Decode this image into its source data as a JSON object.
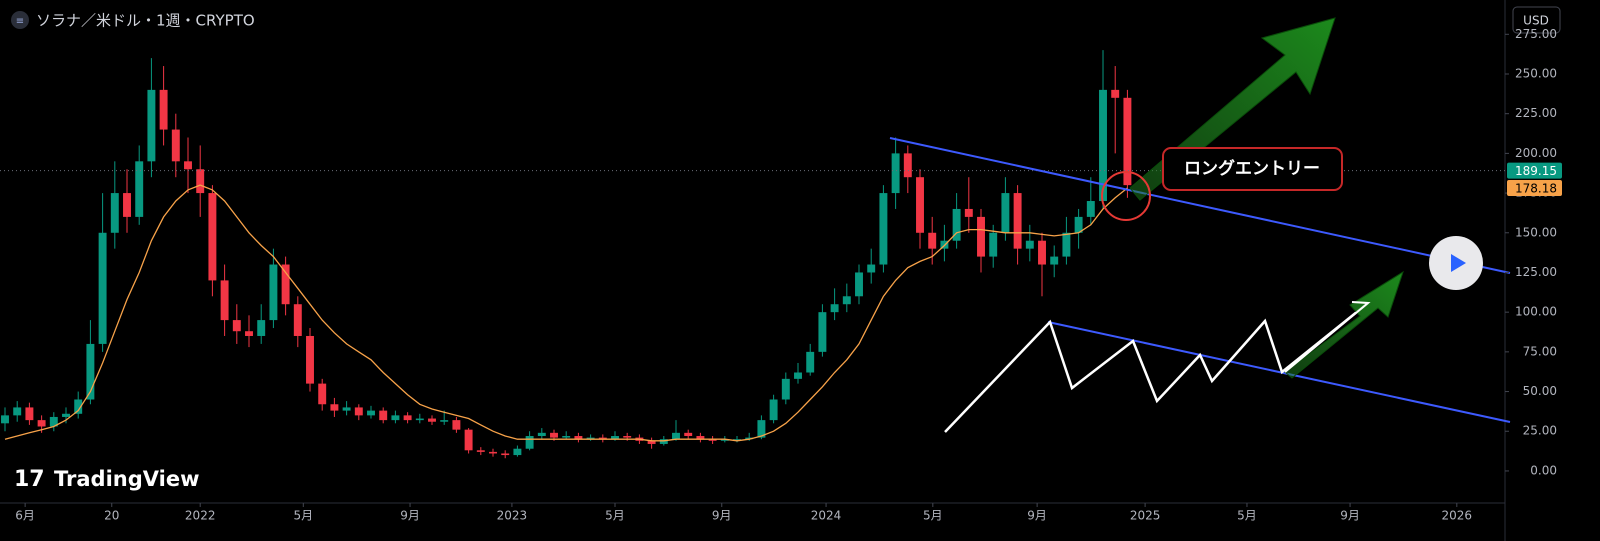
{
  "header": {
    "title": "ソラナ／米ドル・1週・CRYPTO",
    "currency": "USD"
  },
  "watermark": "TradingView",
  "chart_data": {
    "type": "candlestick",
    "x": [
      0,
      2,
      4,
      6,
      8,
      10,
      12,
      14,
      16,
      18,
      20,
      22,
      24,
      26,
      28,
      30,
      32,
      34,
      36,
      38,
      40,
      42,
      44,
      46,
      48,
      50,
      52,
      54,
      56,
      58,
      60,
      62,
      64,
      66,
      68,
      70,
      72,
      74,
      76,
      78,
      80,
      82,
      84,
      86,
      88,
      90,
      92,
      94,
      96,
      98,
      100,
      102,
      104,
      106,
      108,
      110,
      112,
      114,
      116,
      118,
      120,
      122,
      124,
      126,
      128,
      130,
      132,
      134,
      136,
      138,
      140,
      142,
      144,
      146,
      148,
      150,
      152,
      154,
      156,
      158,
      160,
      162,
      164,
      166,
      168,
      170,
      172,
      174,
      176,
      178,
      180,
      182,
      184
    ],
    "open": [
      30,
      35,
      40,
      32,
      28,
      34,
      36,
      45,
      80,
      150,
      175,
      160,
      195,
      240,
      215,
      195,
      190,
      175,
      120,
      95,
      88,
      85,
      95,
      130,
      105,
      85,
      55,
      42,
      38,
      40,
      35,
      38,
      32,
      35,
      32,
      33,
      31,
      32,
      26,
      13,
      12,
      11,
      10,
      14,
      22,
      24,
      21,
      22,
      20,
      21,
      20,
      22,
      21,
      19,
      17,
      20,
      24,
      22,
      20,
      19,
      20,
      20,
      21,
      32,
      45,
      58,
      62,
      75,
      100,
      105,
      110,
      125,
      130,
      175,
      200,
      185,
      150,
      140,
      145,
      165,
      160,
      135,
      150,
      175,
      140,
      145,
      130,
      135,
      150,
      160,
      170,
      240,
      235
    ],
    "high": [
      40,
      44,
      43,
      35,
      37,
      40,
      50,
      95,
      175,
      195,
      190,
      205,
      260,
      255,
      225,
      210,
      205,
      180,
      130,
      105,
      98,
      105,
      140,
      135,
      110,
      90,
      58,
      46,
      44,
      42,
      41,
      40,
      38,
      37,
      36,
      35,
      38,
      34,
      27,
      15,
      14,
      13,
      16,
      25,
      27,
      26,
      25,
      24,
      23,
      23,
      25,
      24,
      23,
      21,
      22,
      32,
      26,
      24,
      22,
      22,
      22,
      24,
      35,
      48,
      62,
      68,
      80,
      105,
      115,
      118,
      130,
      140,
      180,
      210,
      205,
      190,
      160,
      155,
      175,
      185,
      165,
      155,
      185,
      180,
      155,
      150,
      142,
      160,
      165,
      185,
      265,
      255,
      240
    ],
    "low": [
      25,
      31,
      29,
      24,
      25,
      30,
      33,
      42,
      75,
      140,
      150,
      155,
      185,
      205,
      185,
      175,
      160,
      110,
      85,
      80,
      78,
      80,
      90,
      98,
      78,
      50,
      38,
      34,
      35,
      32,
      33,
      30,
      30,
      30,
      30,
      29,
      29,
      24,
      11,
      10,
      9,
      8,
      9,
      13,
      20,
      19,
      20,
      18,
      19,
      18,
      19,
      19,
      17,
      14,
      16,
      19,
      20,
      18,
      17,
      18,
      18,
      19,
      20,
      30,
      42,
      55,
      60,
      72,
      95,
      100,
      105,
      118,
      125,
      165,
      175,
      140,
      130,
      132,
      140,
      150,
      125,
      128,
      145,
      130,
      132,
      110,
      122,
      130,
      140,
      155,
      165,
      200,
      172
    ],
    "close": [
      35,
      40,
      32,
      28,
      34,
      36,
      45,
      80,
      150,
      175,
      160,
      195,
      240,
      215,
      195,
      190,
      175,
      120,
      95,
      88,
      85,
      95,
      130,
      105,
      85,
      55,
      42,
      38,
      40,
      35,
      38,
      32,
      35,
      32,
      33,
      31,
      32,
      26,
      13,
      12,
      11,
      10,
      14,
      22,
      24,
      21,
      22,
      20,
      21,
      20,
      22,
      21,
      19,
      17,
      20,
      24,
      22,
      20,
      19,
      20,
      20,
      21,
      32,
      45,
      58,
      62,
      75,
      100,
      105,
      110,
      125,
      130,
      175,
      200,
      185,
      150,
      140,
      145,
      165,
      160,
      135,
      150,
      175,
      140,
      145,
      130,
      135,
      150,
      160,
      170,
      240,
      235,
      180
    ],
    "up_color": "#089981",
    "down_color": "#f23645",
    "moving_average": {
      "color": "#f7a249",
      "values": [
        20,
        22,
        24,
        26,
        28,
        32,
        38,
        50,
        68,
        88,
        108,
        125,
        145,
        160,
        170,
        177,
        180,
        177,
        170,
        160,
        150,
        142,
        135,
        125,
        115,
        105,
        95,
        87,
        80,
        75,
        70,
        62,
        55,
        48,
        42,
        39,
        37,
        35,
        33,
        29,
        25,
        22,
        20,
        20,
        20,
        20,
        20,
        20,
        20,
        20,
        20,
        20,
        20,
        19,
        19,
        20,
        20,
        20,
        20,
        20,
        19,
        20,
        22,
        25,
        30,
        37,
        45,
        53,
        62,
        70,
        80,
        95,
        110,
        120,
        128,
        132,
        135,
        142,
        150,
        152,
        152,
        151,
        150,
        150,
        150,
        149,
        148,
        149,
        150,
        155,
        165,
        172,
        178.18
      ]
    },
    "last_price": 189.15,
    "last_price_color": "#089981",
    "xlim": [
      -0.82,
      245.9
    ],
    "xticks": [
      {
        "value": 3.3,
        "label": "6月"
      },
      {
        "value": 17.5,
        "label": "20"
      },
      {
        "value": 32,
        "label": "2022"
      },
      {
        "value": 48.9,
        "label": "5月"
      },
      {
        "value": 66.4,
        "label": "9月"
      },
      {
        "value": 83.1,
        "label": "2023"
      },
      {
        "value": 100,
        "label": "5月"
      },
      {
        "value": 117.5,
        "label": "9月"
      },
      {
        "value": 134.6,
        "label": "2024"
      },
      {
        "value": 152.1,
        "label": "5月"
      },
      {
        "value": 169.2,
        "label": "9月"
      },
      {
        "value": 186.9,
        "label": "2025"
      },
      {
        "value": 203.6,
        "label": "5月"
      },
      {
        "value": 220.5,
        "label": "9月"
      },
      {
        "value": 238,
        "label": "2026"
      }
    ],
    "ylim": [
      -18.3,
      296.6
    ],
    "yticks": [
      {
        "value": 0,
        "label": "0.00"
      },
      {
        "value": 25,
        "label": "25.00"
      },
      {
        "value": 50,
        "label": "50.00"
      },
      {
        "value": 75,
        "label": "75.00"
      },
      {
        "value": 100,
        "label": "100.00"
      },
      {
        "value": 125,
        "label": "125.00"
      },
      {
        "value": 150,
        "label": "150.00"
      },
      {
        "value": 175,
        "label": "175.00"
      },
      {
        "value": 200,
        "label": "200.00"
      },
      {
        "value": 225,
        "label": "225.00"
      },
      {
        "value": 250,
        "label": "250.00"
      },
      {
        "value": 275,
        "label": "275.00"
      }
    ],
    "grid": false,
    "annotation": "ロングエントリー"
  }
}
